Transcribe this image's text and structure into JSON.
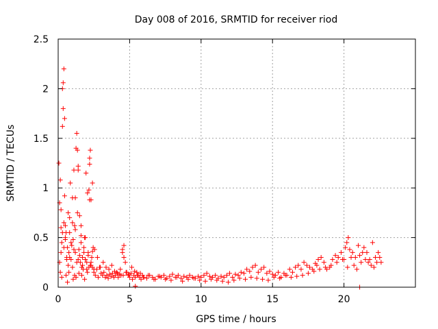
{
  "chart_data": {
    "type": "scatter",
    "title": "Day 008 of 2016, SRMTID for receiver riod",
    "xlabel": "GPS time / hours",
    "ylabel": "SRMTID / TECUs",
    "xlim": [
      0,
      25
    ],
    "ylim": [
      0,
      2.5
    ],
    "xticks": [
      0,
      5,
      10,
      15,
      20
    ],
    "xtick_labels": [
      "0",
      "5",
      "10",
      "15",
      "20"
    ],
    "yticks": [
      0,
      0.5,
      1,
      1.5,
      2,
      2.5
    ],
    "ytick_labels": [
      "0",
      "0.5",
      "1",
      "1.5",
      "2",
      "2.5"
    ],
    "grid": true,
    "marker": "+",
    "color": "#ff0000",
    "series": [
      {
        "name": "SRMTID",
        "x": [
          0.05,
          0.1,
          0.15,
          0.2,
          0.25,
          0.3,
          0.35,
          0.4,
          0.45,
          0.5,
          0.55,
          0.6,
          0.65,
          0.7,
          0.75,
          0.8,
          0.85,
          0.9,
          0.95,
          1.0,
          1.05,
          1.1,
          1.15,
          1.2,
          1.25,
          1.3,
          1.35,
          1.4,
          1.45,
          1.5,
          1.55,
          1.6,
          1.65,
          1.7,
          1.75,
          1.8,
          1.85,
          1.9,
          1.95,
          2.0,
          2.05,
          2.1,
          2.15,
          2.2,
          2.25,
          2.3,
          2.35,
          2.4,
          2.45,
          2.5,
          0.1,
          0.2,
          0.3,
          0.4,
          0.5,
          0.6,
          0.7,
          0.8,
          0.9,
          1.0,
          1.1,
          1.2,
          1.3,
          1.4,
          1.5,
          1.6,
          1.7,
          1.8,
          1.9,
          2.0,
          2.1,
          2.2,
          2.3,
          2.4,
          0.35,
          0.4,
          0.45,
          0.3,
          1.35,
          1.4,
          2.15,
          2.2,
          2.3,
          2.4,
          0.15,
          0.25,
          0.55,
          0.65,
          0.75,
          1.05,
          1.15,
          1.25,
          1.45,
          1.65,
          1.85,
          2.05,
          0.2,
          0.5,
          0.8,
          1.0,
          1.2,
          1.6,
          1.9,
          2.25,
          2.5,
          2.6,
          2.7,
          2.8,
          2.9,
          3.0,
          3.1,
          3.2,
          3.3,
          3.4,
          3.5,
          3.6,
          3.7,
          3.8,
          3.9,
          4.0,
          4.1,
          4.2,
          4.3,
          4.4,
          4.5,
          4.6,
          4.7,
          4.8,
          4.9,
          5.0,
          5.1,
          5.2,
          5.3,
          5.4,
          5.5,
          5.6,
          5.7,
          5.8,
          5.9,
          6.0,
          6.2,
          6.4,
          6.6,
          6.8,
          7.0,
          7.2,
          7.4,
          7.6,
          7.8,
          8.0,
          8.2,
          8.4,
          8.6,
          8.8,
          9.0,
          9.2,
          9.4,
          9.6,
          9.8,
          10.0,
          10.2,
          10.4,
          10.6,
          10.8,
          11.0,
          11.2,
          11.4,
          11.6,
          11.8,
          12.0,
          12.2,
          12.4,
          12.6,
          12.8,
          13.0,
          13.2,
          13.4,
          13.6,
          13.8,
          14.0,
          14.2,
          14.4,
          14.6,
          14.8,
          15.0,
          15.2,
          15.4,
          15.6,
          15.8,
          16.0,
          16.2,
          16.4,
          16.6,
          16.8,
          17.0,
          17.2,
          17.4,
          17.6,
          17.8,
          18.0,
          18.1,
          18.2,
          18.4,
          18.6,
          18.8,
          19.0,
          19.2,
          19.4,
          19.6,
          19.8,
          20.0,
          20.1,
          20.2,
          20.3,
          20.4,
          20.6,
          20.8,
          21.0,
          21.1,
          21.2,
          21.4,
          21.6,
          21.8,
          22.0,
          22.2,
          22.4,
          22.6,
          2.55,
          2.75,
          2.95,
          3.15,
          3.35,
          3.55,
          3.75,
          3.95,
          4.15,
          4.35,
          4.55,
          4.75,
          4.95,
          5.15,
          5.35,
          5.55,
          5.75,
          5.95,
          6.3,
          6.7,
          7.1,
          7.5,
          7.9,
          8.3,
          8.7,
          9.1,
          9.5,
          9.9,
          10.3,
          10.7,
          11.1,
          11.5,
          11.9,
          12.3,
          12.7,
          13.1,
          13.5,
          13.9,
          14.3,
          14.7,
          15.1,
          15.5,
          15.9,
          16.3,
          16.7,
          17.1,
          17.5,
          17.9,
          18.3,
          18.7,
          19.1,
          19.5,
          19.9,
          20.25,
          20.5,
          20.7,
          20.9,
          21.3,
          21.5,
          21.7,
          21.9,
          22.1,
          22.3,
          22.5,
          4.5,
          4.6,
          5.4,
          21.1
        ],
        "values": [
          1.25,
          0.85,
          1.08,
          0.78,
          0.45,
          2.0,
          1.8,
          0.65,
          0.92,
          0.5,
          0.55,
          0.3,
          0.4,
          0.22,
          0.35,
          0.7,
          1.05,
          0.28,
          0.42,
          0.9,
          0.48,
          1.18,
          0.62,
          0.35,
          1.4,
          1.55,
          0.75,
          0.28,
          0.38,
          0.72,
          0.25,
          0.45,
          0.2,
          0.3,
          0.18,
          0.35,
          0.5,
          0.28,
          1.15,
          0.25,
          0.95,
          0.35,
          0.2,
          1.3,
          1.38,
          0.22,
          0.3,
          1.05,
          0.4,
          0.18,
          0.25,
          0.35,
          0.55,
          0.4,
          0.62,
          0.28,
          0.75,
          0.3,
          0.45,
          0.2,
          0.38,
          0.9,
          0.25,
          1.22,
          0.32,
          0.52,
          0.22,
          0.4,
          0.28,
          0.18,
          0.32,
          0.88,
          0.25,
          0.2,
          2.06,
          2.2,
          1.7,
          1.62,
          1.38,
          1.18,
          0.98,
          1.24,
          0.88,
          0.36,
          0.15,
          0.1,
          0.12,
          0.05,
          0.15,
          0.08,
          0.12,
          0.1,
          0.14,
          0.12,
          0.08,
          0.15,
          0.6,
          0.48,
          0.55,
          0.65,
          0.58,
          0.62,
          0.5,
          0.22,
          0.15,
          0.12,
          0.18,
          0.1,
          0.2,
          0.14,
          0.12,
          0.15,
          0.1,
          0.12,
          0.09,
          0.13,
          0.11,
          0.14,
          0.1,
          0.12,
          0.15,
          0.1,
          0.13,
          0.12,
          0.35,
          0.3,
          0.25,
          0.15,
          0.12,
          0.1,
          0.14,
          0.08,
          0.12,
          0.1,
          0.15,
          0.12,
          0.1,
          0.08,
          0.12,
          0.1,
          0.09,
          0.12,
          0.1,
          0.08,
          0.11,
          0.1,
          0.12,
          0.09,
          0.11,
          0.13,
          0.1,
          0.12,
          0.09,
          0.11,
          0.1,
          0.12,
          0.1,
          0.09,
          0.11,
          0.1,
          0.12,
          0.14,
          0.11,
          0.1,
          0.12,
          0.09,
          0.11,
          0.1,
          0.12,
          0.14,
          0.1,
          0.13,
          0.12,
          0.15,
          0.14,
          0.18,
          0.16,
          0.2,
          0.22,
          0.15,
          0.18,
          0.2,
          0.14,
          0.16,
          0.13,
          0.12,
          0.15,
          0.1,
          0.14,
          0.12,
          0.18,
          0.15,
          0.2,
          0.22,
          0.18,
          0.25,
          0.22,
          0.2,
          0.18,
          0.24,
          0.22,
          0.28,
          0.3,
          0.25,
          0.18,
          0.2,
          0.28,
          0.32,
          0.3,
          0.35,
          0.28,
          0.4,
          0.45,
          0.5,
          0.38,
          0.35,
          0.3,
          0.42,
          0.32,
          0.25,
          0.4,
          0.35,
          0.28,
          0.45,
          0.3,
          0.35,
          0.25,
          0.38,
          0.3,
          0.2,
          0.25,
          0.2,
          0.18,
          0.22,
          0.16,
          0.14,
          0.18,
          0.12,
          0.15,
          0.13,
          0.2,
          0.16,
          0.12,
          0.14,
          0.1,
          0.12,
          0.08,
          0.11,
          0.08,
          0.07,
          0.1,
          0.06,
          0.08,
          0.09,
          0.07,
          0.06,
          0.08,
          0.07,
          0.06,
          0.05,
          0.07,
          0.09,
          0.08,
          0.1,
          0.09,
          0.08,
          0.07,
          0.1,
          0.09,
          0.12,
          0.1,
          0.11,
          0.12,
          0.14,
          0.16,
          0.18,
          0.2,
          0.22,
          0.25,
          0.28,
          0.2,
          0.3,
          0.22,
          0.18,
          0.35,
          0.28,
          0.25,
          0.22,
          0.2,
          0.25,
          0.3,
          0.38,
          0.42,
          0.01,
          0.0
        ]
      }
    ]
  }
}
